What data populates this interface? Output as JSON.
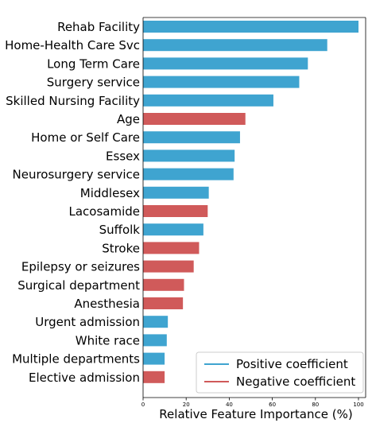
{
  "chart_data": {
    "type": "bar",
    "orientation": "horizontal",
    "xlabel": "Relative Feature Importance (%)",
    "xlim": [
      0,
      100
    ],
    "xticks": [
      0,
      20,
      40,
      60,
      80,
      100
    ],
    "grid": false,
    "legend_position": "bottom-right",
    "series": [
      {
        "name": "Positive coefficient",
        "color": "#3fa4d0"
      },
      {
        "name": "Negative coefficient",
        "color": "#d05a5a"
      }
    ],
    "categories": [
      "Rehab Facility",
      "Home-Health Care Svc",
      "Long Term Care",
      "Surgery service",
      "Skilled Nursing Facility",
      "Age",
      "Home or Self Care",
      "Essex",
      "Neurosurgery service",
      "Middlesex",
      "Lacosamide",
      "Suffolk",
      "Stroke",
      "Epilepsy or seizures",
      "Surgical department",
      "Anesthesia",
      "Urgent admission",
      "White race",
      "Multiple departments",
      "Elective admission"
    ],
    "values": [
      100,
      85.5,
      76.5,
      72.5,
      60.5,
      47.5,
      45,
      42.5,
      42,
      30.5,
      30,
      28,
      26,
      23.5,
      19,
      18.5,
      11.5,
      11,
      10,
      10
    ],
    "signs": [
      "positive",
      "positive",
      "positive",
      "positive",
      "positive",
      "negative",
      "positive",
      "positive",
      "positive",
      "positive",
      "negative",
      "positive",
      "negative",
      "negative",
      "negative",
      "negative",
      "positive",
      "positive",
      "positive",
      "negative"
    ]
  }
}
